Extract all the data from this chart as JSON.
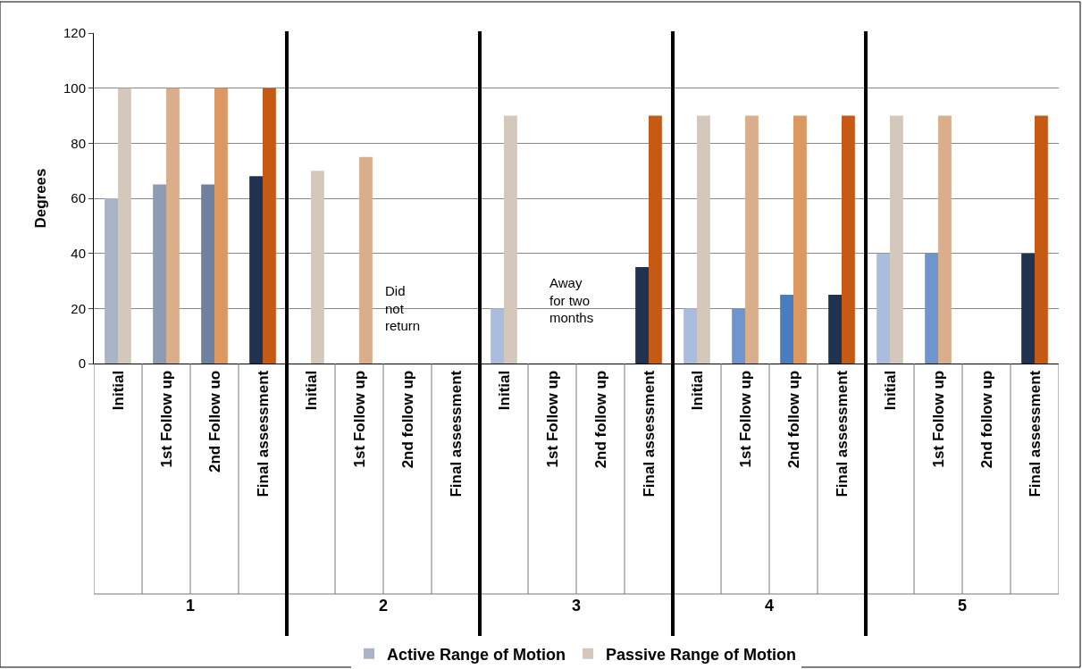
{
  "chart_data": {
    "type": "bar",
    "ylabel": "Degrees",
    "categories": [
      "Initial",
      "1st Follow up",
      "2nd Follow uo",
      "Final assessment",
      "Initial",
      "1st Follow up",
      "2nd follow up",
      "Final assessment",
      "Initial",
      "1st Follow up",
      "2nd follow up",
      "Final assessment",
      "Initial",
      "1st Follow up",
      "2nd follow up",
      "Final assessment",
      "Initial",
      "1st Follow up",
      "2nd follow up",
      "Final assessment"
    ],
    "series": [
      {
        "name": "Active Range of Motion",
        "values": [
          60,
          65,
          65,
          68,
          null,
          null,
          null,
          null,
          20,
          null,
          null,
          35,
          20,
          20,
          25,
          25,
          40,
          40,
          null,
          40
        ],
        "colors": [
          "#aab4c6",
          "#8d9bb4",
          "#6e819f",
          "#1f3350",
          "#aab4c6",
          "#8d9bb4",
          "#6e819f",
          "#1f3350",
          "#a9bede",
          "#7f9fcc",
          "#5a86c2",
          "#1f3350",
          "#a9bede",
          "#6f95cc",
          "#4a7cc0",
          "#1f3350",
          "#a9bede",
          "#6f95cc",
          "#4a7cc0",
          "#1f3350"
        ]
      },
      {
        "name": "Passive Range of Motion",
        "values": [
          100,
          100,
          100,
          100,
          70,
          75,
          null,
          null,
          90,
          null,
          null,
          90,
          90,
          90,
          90,
          90,
          90,
          90,
          null,
          90
        ],
        "colors": [
          "#d4c8bc",
          "#d9ae8c",
          "#dc9860",
          "#c65a14",
          "#d4c8bc",
          "#d9ae8c",
          "#dc9860",
          "#c65a14",
          "#d4c8bc",
          "#d9ae8c",
          "#dc9860",
          "#c65a14",
          "#d4c8bc",
          "#d9ae8c",
          "#dc9860",
          "#c65a14",
          "#d4c8bc",
          "#d9ae8c",
          "#dc9860",
          "#c65a14"
        ]
      }
    ],
    "ylim": [
      0,
      120
    ],
    "yticks": [
      0,
      20,
      40,
      60,
      80,
      100,
      120
    ],
    "grid": "y",
    "legend": "bottom",
    "annotations": [
      "1",
      "2",
      "3",
      "4",
      "5",
      "Did\nnot\nreturn",
      "Away\nfor two\nmonths"
    ]
  }
}
